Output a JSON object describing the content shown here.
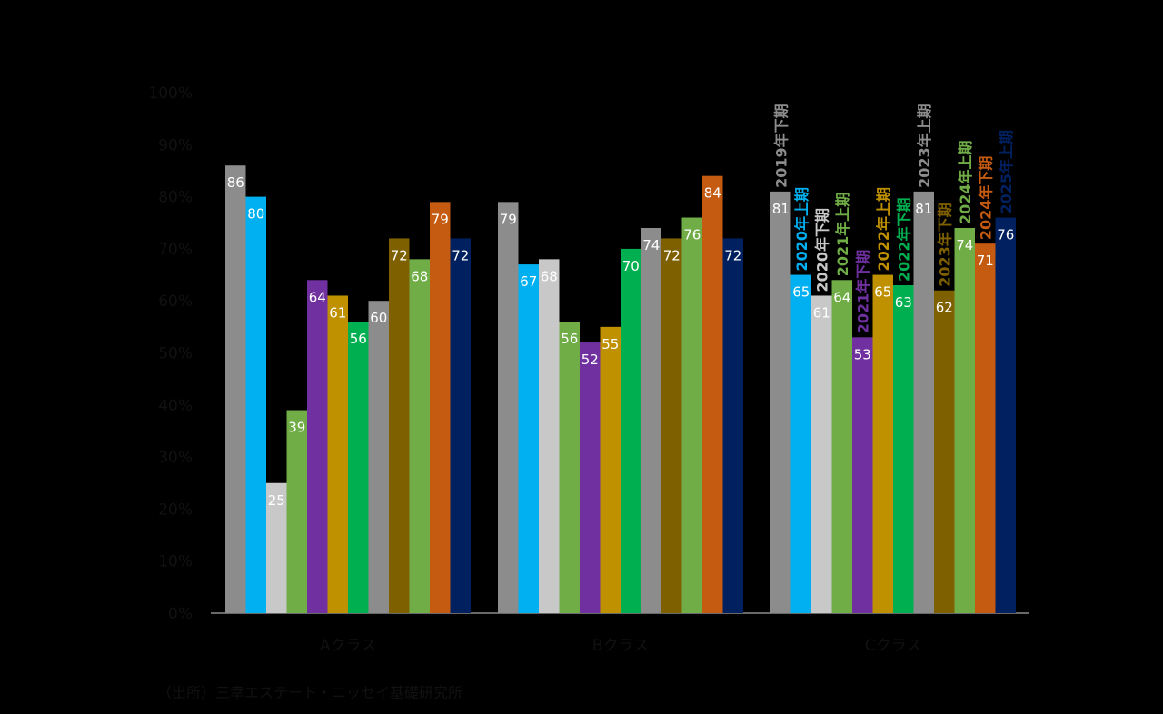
{
  "chart_data": {
    "type": "bar",
    "categories": [
      "Aクラス",
      "Bクラス",
      "Cクラス"
    ],
    "ylim": [
      0,
      100
    ],
    "yticks": [
      "0%",
      "10%",
      "20%",
      "30%",
      "40%",
      "50%",
      "60%",
      "70%",
      "80%",
      "90%",
      "100%"
    ],
    "grid": false,
    "legend_placement": "inline labels above Cクラス bars",
    "series": [
      {
        "name": "2019年下期",
        "color": "#8c8c8c",
        "values": [
          86,
          79,
          81
        ]
      },
      {
        "name": "2020年上期",
        "color": "#00b0f0",
        "values": [
          80,
          67,
          65
        ]
      },
      {
        "name": "2020年下期",
        "color": "#c8c8c8",
        "values": [
          25,
          68,
          61
        ]
      },
      {
        "name": "2021年上期",
        "color": "#70ad47",
        "values": [
          39,
          56,
          64
        ]
      },
      {
        "name": "2021年下期",
        "color": "#7030a0",
        "values": [
          64,
          52,
          53
        ]
      },
      {
        "name": "2022年上期",
        "color": "#bf9000",
        "values": [
          61,
          55,
          65
        ]
      },
      {
        "name": "2022年下期",
        "color": "#00b050",
        "values": [
          56,
          70,
          63
        ]
      },
      {
        "name": "2023年上期",
        "color": "#8c8c8c",
        "values": [
          60,
          74,
          81
        ]
      },
      {
        "name": "2023年下期",
        "color": "#7f6000",
        "values": [
          72,
          72,
          62
        ]
      },
      {
        "name": "2024年上期",
        "color": "#70ad47",
        "values": [
          68,
          76,
          74
        ]
      },
      {
        "name": "2024年下期",
        "color": "#c55a11",
        "values": [
          79,
          84,
          71
        ]
      },
      {
        "name": "2025年上期",
        "color": "#002060",
        "values": [
          72,
          72,
          76
        ]
      }
    ]
  },
  "source": "（出所）三幸エステート・ニッセイ基礎研究所"
}
